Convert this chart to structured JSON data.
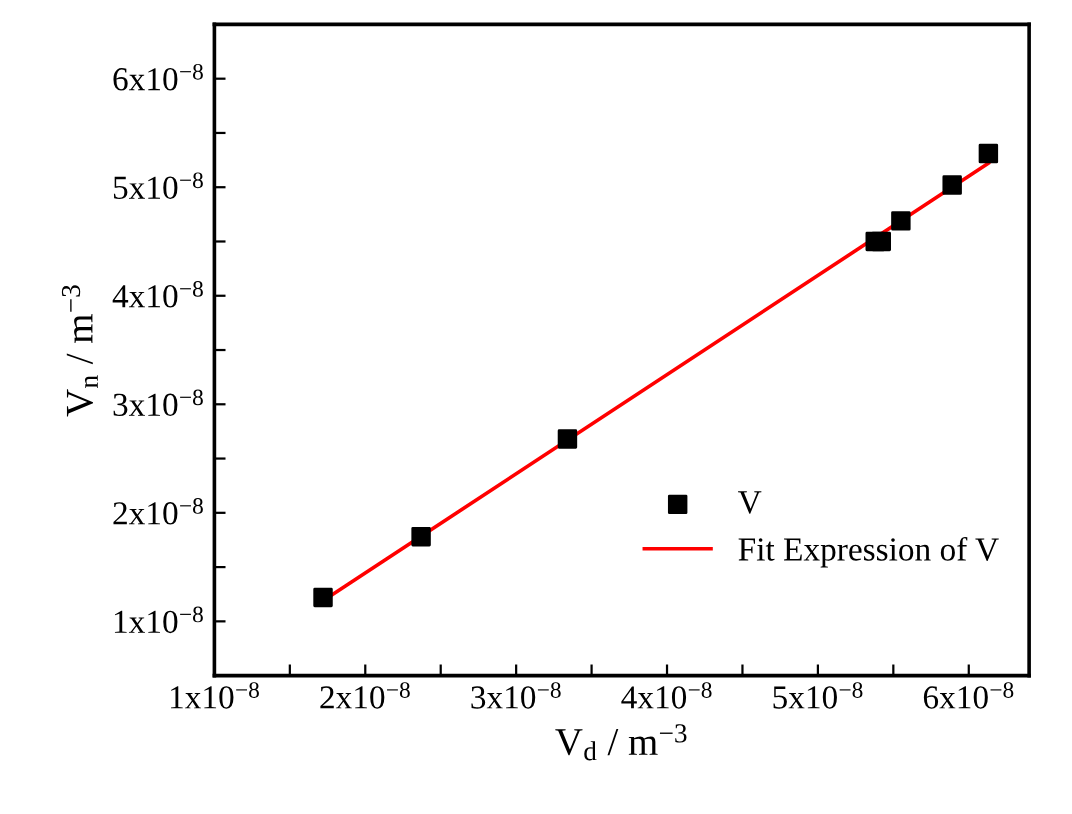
{
  "chart_data": {
    "type": "scatter",
    "xlabel": "V$_{d}$ / m$^{−3}$",
    "ylabel": "V$_{n}$ / m$^{−3}$",
    "xlim": [
      1e-08,
      6.4e-08
    ],
    "ylim": [
      5e-09,
      6.5e-08
    ],
    "xticks": [
      {
        "value": 1e-08,
        "label": "1x10$^{−8}$"
      },
      {
        "value": 1.5e-08,
        "label": null
      },
      {
        "value": 2e-08,
        "label": "2x10$^{−8}$"
      },
      {
        "value": 2.5e-08,
        "label": null
      },
      {
        "value": 3e-08,
        "label": "3x10$^{−8}$"
      },
      {
        "value": 3.5e-08,
        "label": null
      },
      {
        "value": 4e-08,
        "label": "4x10$^{−8}$"
      },
      {
        "value": 4.5e-08,
        "label": null
      },
      {
        "value": 5e-08,
        "label": "5x10$^{−8}$"
      },
      {
        "value": 5.5e-08,
        "label": null
      },
      {
        "value": 6e-08,
        "label": "6x10$^{−8}$"
      }
    ],
    "yticks": [
      {
        "value": 1e-08,
        "label": "1x10$^{−8}$"
      },
      {
        "value": 1.5e-08,
        "label": null
      },
      {
        "value": 2e-08,
        "label": "2x10$^{−8}$"
      },
      {
        "value": 2.5e-08,
        "label": null
      },
      {
        "value": 3e-08,
        "label": "3x10$^{−8}$"
      },
      {
        "value": 3.5e-08,
        "label": null
      },
      {
        "value": 4e-08,
        "label": "4x10$^{−8}$"
      },
      {
        "value": 4.5e-08,
        "label": null
      },
      {
        "value": 5e-08,
        "label": "5x10$^{−8}$"
      },
      {
        "value": 5.5e-08,
        "label": null
      },
      {
        "value": 6e-08,
        "label": "6x10$^{−8}$"
      }
    ],
    "grid": false,
    "legend": "bottom right",
    "series": [
      {
        "name": "V",
        "marker": "square",
        "color": "#000000",
        "x": [
          1.72e-08,
          2.37e-08,
          3.34e-08,
          5.38e-08,
          5.42e-08,
          5.55e-08,
          5.89e-08,
          6.13e-08
        ],
        "values": [
          1.22e-08,
          1.78e-08,
          2.68e-08,
          4.5e-08,
          4.5e-08,
          4.69e-08,
          5.02e-08,
          5.31e-08
        ]
      },
      {
        "name": "Fit Expression of V",
        "type": "line",
        "line_style": "solid",
        "color": "#ff0000",
        "x": [
          1.72e-08,
          6.13e-08
        ],
        "values": [
          1.19e-08,
          5.22e-08
        ]
      }
    ]
  }
}
